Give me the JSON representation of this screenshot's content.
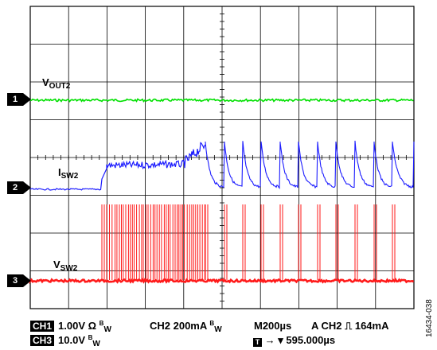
{
  "traces": {
    "vout2": {
      "label_main": "V",
      "label_sub": "OUT2",
      "color": "#00e000",
      "channel_marker": "1"
    },
    "isw2": {
      "label_main": "I",
      "label_sub": "SW2",
      "color": "#1a1aff",
      "channel_marker": "2"
    },
    "vsw2": {
      "label_main": "V",
      "label_sub": "SW2",
      "color": "#ff1a1a",
      "channel_marker": "3"
    }
  },
  "status": {
    "ch1_badge": "CH1",
    "ch1_value": "1.00V Ω",
    "ch2_text": "CH2 200mA",
    "timebase": "M200µs",
    "trigger": "A  CH2  ⎍  164mA",
    "ch3_badge": "CH3",
    "ch3_value": "10.0V",
    "bw_main": "B",
    "bw_sub": "W",
    "trigger_icon": "T",
    "trigger_position": "→ ▾ 595.000µs"
  },
  "figure_id": "16434-038",
  "grid": {
    "divisions_x": 10,
    "divisions_y": 8,
    "minor_ticks": 5
  }
}
